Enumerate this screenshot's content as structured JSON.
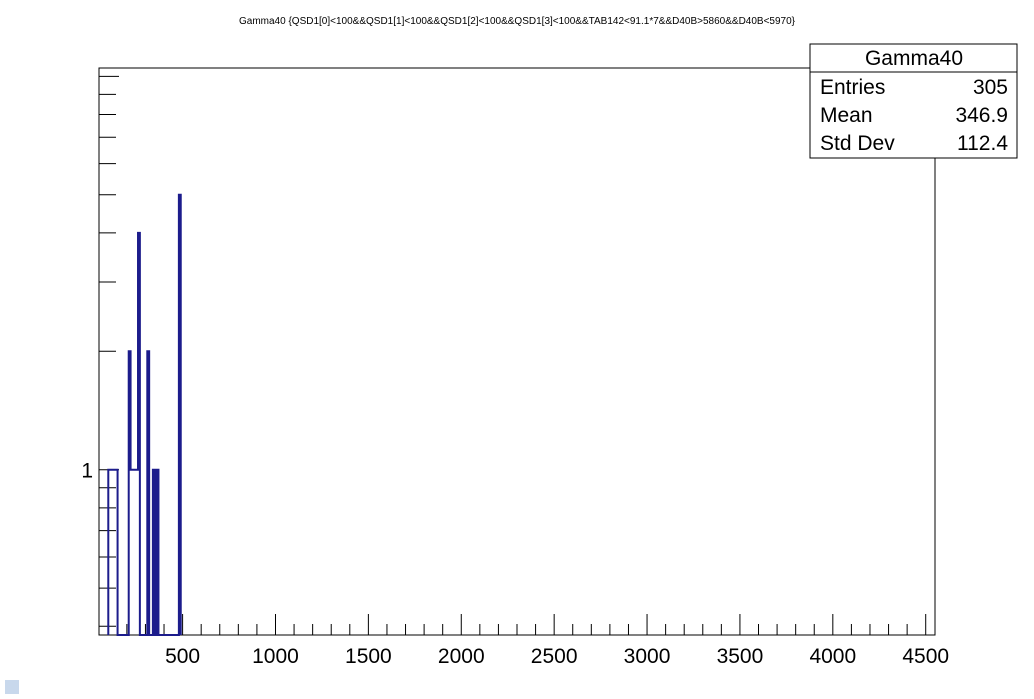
{
  "chart_data": {
    "type": "histogram",
    "title": "Gamma40 {QSD1[0]<100&&QSD1[1]<100&&QSD1[2]<100&&QSD1[3]<100&&TAB142<91.1*7&&D40B>5860&&D40B<5970}",
    "xlabel": "",
    "ylabel": "",
    "xlim": [
      50,
      4550
    ],
    "ylim": [
      0.38,
      10.5
    ],
    "log_y": true,
    "grid": false,
    "colors": {
      "line": "#1c1c8c",
      "frame": "#000000"
    },
    "x_ticks": [
      "500",
      "1000",
      "1500",
      "2000",
      "2500",
      "3000",
      "3500",
      "4000",
      "4500"
    ],
    "y_ticks": [
      "1"
    ],
    "bins": [
      {
        "x0": 100,
        "x1": 150,
        "y": 1
      },
      {
        "x0": 150,
        "x1": 160,
        "y": 0
      },
      {
        "x0": 160,
        "x1": 170,
        "y": 0
      },
      {
        "x0": 170,
        "x1": 180,
        "y": 0
      },
      {
        "x0": 180,
        "x1": 190,
        "y": 0
      },
      {
        "x0": 190,
        "x1": 200,
        "y": 0
      },
      {
        "x0": 200,
        "x1": 210,
        "y": 0
      },
      {
        "x0": 210,
        "x1": 220,
        "y": 2
      },
      {
        "x0": 220,
        "x1": 230,
        "y": 1
      },
      {
        "x0": 230,
        "x1": 240,
        "y": 1
      },
      {
        "x0": 240,
        "x1": 250,
        "y": 1
      },
      {
        "x0": 250,
        "x1": 260,
        "y": 1
      },
      {
        "x0": 260,
        "x1": 270,
        "y": 4
      },
      {
        "x0": 270,
        "x1": 280,
        "y": 0
      },
      {
        "x0": 280,
        "x1": 290,
        "y": 0
      },
      {
        "x0": 290,
        "x1": 300,
        "y": 0
      },
      {
        "x0": 300,
        "x1": 310,
        "y": 0
      },
      {
        "x0": 310,
        "x1": 320,
        "y": 2
      },
      {
        "x0": 320,
        "x1": 330,
        "y": 0
      },
      {
        "x0": 330,
        "x1": 340,
        "y": 0
      },
      {
        "x0": 340,
        "x1": 350,
        "y": 1
      },
      {
        "x0": 350,
        "x1": 360,
        "y": 0
      },
      {
        "x0": 360,
        "x1": 370,
        "y": 1
      },
      {
        "x0": 370,
        "x1": 480,
        "y": 0
      },
      {
        "x0": 480,
        "x1": 490,
        "y": 5
      }
    ],
    "stats": {
      "name": "Gamma40",
      "rows": [
        {
          "label": "Entries",
          "value": "305"
        },
        {
          "label": "Mean",
          "value": "346.9"
        },
        {
          "label": "Std Dev",
          "value": "112.4"
        }
      ]
    }
  }
}
